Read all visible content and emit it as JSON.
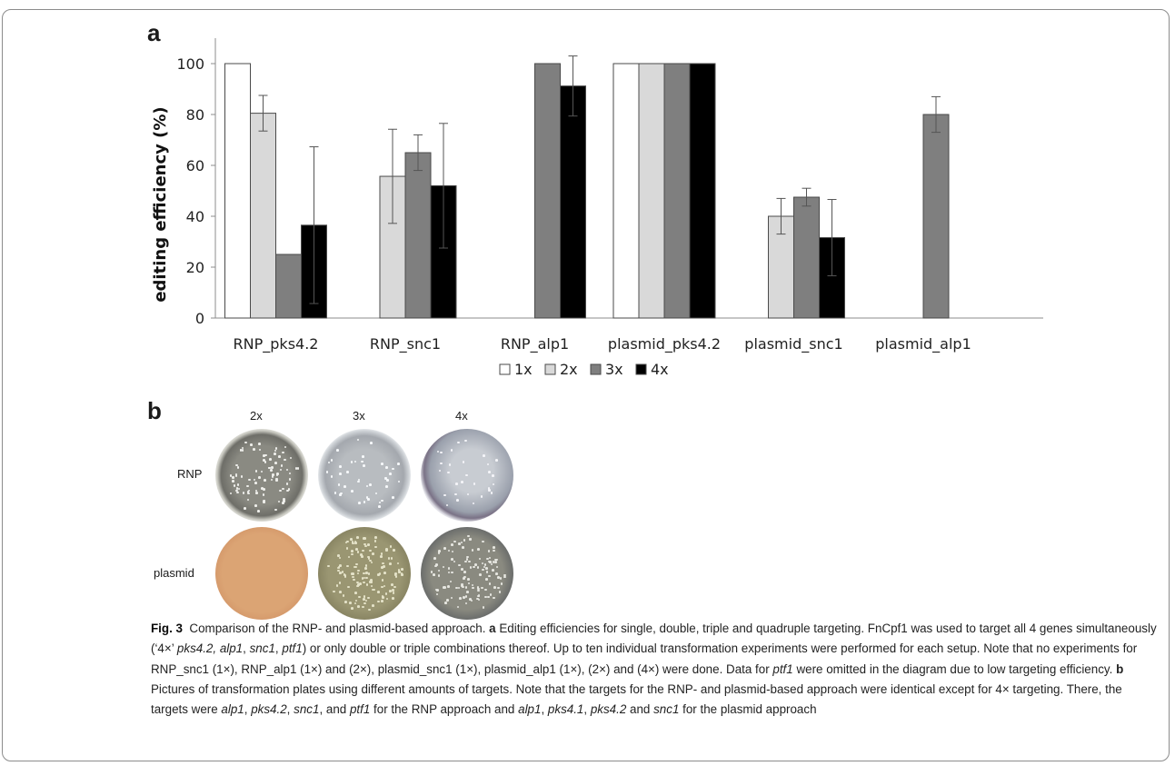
{
  "panels": {
    "a": "a",
    "b": "b"
  },
  "chart_data": {
    "type": "bar",
    "ylabel": "editing efficiency (%)",
    "xlabel": "",
    "ylim": [
      0,
      100
    ],
    "yticks": [
      0,
      20,
      40,
      60,
      80,
      100
    ],
    "grid": false,
    "legend_position": "bottom",
    "categories": [
      "RNP_pks4.2",
      "RNP_snc1",
      "RNP_alp1",
      "plasmid_pks4.2",
      "plasmid_snc1",
      "plasmid_alp1"
    ],
    "series": [
      {
        "name": "1x",
        "color": "#ffffff",
        "values": [
          100,
          null,
          null,
          100,
          null,
          null
        ],
        "errors": [
          null,
          null,
          null,
          null,
          null,
          null
        ]
      },
      {
        "name": "2x",
        "color": "#d9d9d9",
        "values": [
          80.5,
          55.7,
          null,
          100,
          40.0,
          null
        ],
        "errors": [
          7.0,
          18.5,
          null,
          null,
          7.0,
          null
        ]
      },
      {
        "name": "3x",
        "color": "#7f7f7f",
        "values": [
          25.0,
          65.0,
          100,
          100,
          47.5,
          80.0
        ],
        "errors": [
          null,
          7.0,
          null,
          null,
          3.5,
          7.0
        ]
      },
      {
        "name": "4x",
        "color": "#000000",
        "values": [
          36.5,
          52.0,
          91.2,
          100,
          31.6,
          null
        ],
        "errors": [
          30.8,
          24.5,
          11.8,
          null,
          15.0,
          null
        ]
      }
    ]
  },
  "plates": {
    "columns": [
      "2x",
      "3x",
      "4x"
    ],
    "rows": [
      "RNP",
      "plasmid"
    ]
  },
  "caption": {
    "fig_label": "Fig. 3",
    "title": "Comparison of the RNP- and plasmid-based approach.",
    "a_label": "a",
    "a_text1": "Editing efficiencies for single, double, triple and quadruple targeting. FnCpf1 was used to target all 4 genes simultaneously (‘4×’",
    "a_genes": "pks4.2, alp1",
    "a_text1b": ",",
    "a_snc1": "snc1",
    "a_text1c": ",",
    "a_ptf1": "ptf1",
    "a_text2": ") or only double or triple combinations thereof. Up to ten individual transformation experiments were performed for each setup. Note that no experiments for RNP_snc1 (1×), RNP_alp1 (1×) and (2×), plasmid_snc1 (1×), plasmid_alp1 (1×), (2×) and (4×) were done. Data for",
    "a_ptf1b": "ptf1",
    "a_text3": "were omitted in the diagram due to low targeting efficiency.",
    "b_label": "b",
    "b_text1": "Pictures of transformation plates using different amounts of targets. Note that the targets for the RNP- and plasmid-based approach were identical except for 4× targeting. There, the targets were",
    "b_g1": "alp1",
    "b_c1": ",",
    "b_g2": "pks4.2",
    "b_c2": ",",
    "b_g3": "snc1",
    "b_c3": ", and",
    "b_g4": "ptf1",
    "b_t2": "for the RNP approach and",
    "b_g5": "alp1",
    "b_c4": ",",
    "b_g6": "pks4.1",
    "b_c5": ",",
    "b_g7": "pks4.2",
    "b_c6": "and",
    "b_g8": "snc1",
    "b_t3": "for the plasmid approach"
  }
}
